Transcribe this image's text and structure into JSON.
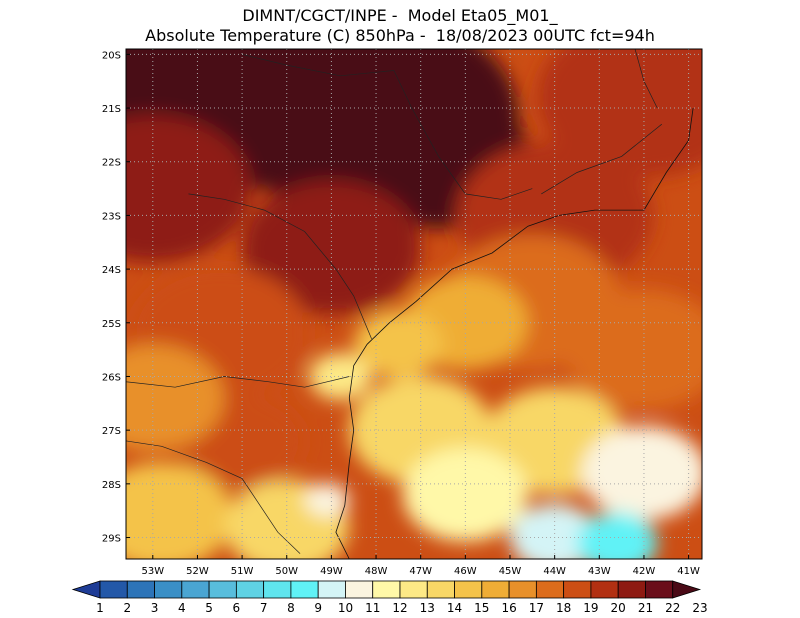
{
  "title": {
    "line1": "DIMNT/CGCT/INPE -  Model Eta05_M01_",
    "line2": "Absolute Temperature (C) 850hPa -  18/08/2023 00UTC fct=94h"
  },
  "map": {
    "lon_range": [
      -53.6,
      -40.7
    ],
    "lat_range": [
      -29.4,
      -19.9
    ],
    "lat_ticks": [
      {
        "value": -20,
        "label": "20S"
      },
      {
        "value": -21,
        "label": "21S"
      },
      {
        "value": -22,
        "label": "22S"
      },
      {
        "value": -23,
        "label": "23S"
      },
      {
        "value": -24,
        "label": "24S"
      },
      {
        "value": -25,
        "label": "25S"
      },
      {
        "value": -26,
        "label": "26S"
      },
      {
        "value": -27,
        "label": "27S"
      },
      {
        "value": -28,
        "label": "28S"
      },
      {
        "value": -29,
        "label": "29S"
      }
    ],
    "lon_ticks": [
      {
        "value": -53,
        "label": "53W"
      },
      {
        "value": -52,
        "label": "52W"
      },
      {
        "value": -51,
        "label": "51W"
      },
      {
        "value": -50,
        "label": "50W"
      },
      {
        "value": -49,
        "label": "49W"
      },
      {
        "value": -48,
        "label": "48W"
      },
      {
        "value": -47,
        "label": "47W"
      },
      {
        "value": -46,
        "label": "46W"
      },
      {
        "value": -45,
        "label": "45W"
      },
      {
        "value": -44,
        "label": "44W"
      },
      {
        "value": -43,
        "label": "43W"
      },
      {
        "value": -42,
        "label": "42W"
      },
      {
        "value": -41,
        "label": "41W"
      }
    ],
    "grid": true
  },
  "colorbar": {
    "labels": [
      "1",
      "2",
      "3",
      "4",
      "5",
      "6",
      "7",
      "8",
      "9",
      "10",
      "11",
      "12",
      "13",
      "14",
      "15",
      "16",
      "17",
      "18",
      "19",
      "20",
      "21",
      "22",
      "23"
    ],
    "colors": [
      "#1e3c96",
      "#2358a8",
      "#2d74b8",
      "#3a8fc6",
      "#4aa5d2",
      "#58bddc",
      "#5fd2e4",
      "#5fe5ee",
      "#60f2f6",
      "#d4f4f6",
      "#fbf4e0",
      "#fff8a8",
      "#fde986",
      "#f8d766",
      "#f4c34a",
      "#efad36",
      "#e8902a",
      "#dc6c1c",
      "#cc4e14",
      "#b23012",
      "#8e1a12",
      "#6a0e1a",
      "#4a0a16"
    ]
  },
  "chart_data": {
    "type": "heatmap",
    "field": "Absolute Temperature (C) 850hPa",
    "levels": [
      1,
      2,
      3,
      4,
      5,
      6,
      7,
      8,
      9,
      10,
      11,
      12,
      13,
      14,
      15,
      16,
      17,
      18,
      19,
      20,
      21,
      22,
      23
    ],
    "x_ticks": [
      "53W",
      "52W",
      "51W",
      "50W",
      "49W",
      "48W",
      "47W",
      "46W",
      "45W",
      "44W",
      "43W",
      "42W",
      "41W"
    ],
    "y_ticks": [
      "20S",
      "21S",
      "22S",
      "23S",
      "24S",
      "25S",
      "26S",
      "27S",
      "28S",
      "29S"
    ],
    "regions": [
      {
        "lon": -52.0,
        "lat": -20.5,
        "value": 23,
        "r": 3.5
      },
      {
        "lon": -48.0,
        "lat": -21.2,
        "value": 23,
        "r": 3.2
      },
      {
        "lon": -46.5,
        "lat": -22.0,
        "value": 23,
        "r": 2.0
      },
      {
        "lon": -53.0,
        "lat": -22.5,
        "value": 21,
        "r": 2.2
      },
      {
        "lon": -49.0,
        "lat": -23.6,
        "value": 21,
        "r": 2.0
      },
      {
        "lon": -42.0,
        "lat": -20.8,
        "value": 20,
        "r": 2.4
      },
      {
        "lon": -44.0,
        "lat": -23.0,
        "value": 20,
        "r": 2.2
      },
      {
        "lon": -51.5,
        "lat": -25.2,
        "value": 19,
        "r": 2.0
      },
      {
        "lon": -51.0,
        "lat": -27.2,
        "value": 19,
        "r": 1.4
      },
      {
        "lon": -53.0,
        "lat": -26.4,
        "value": 17,
        "r": 1.6
      },
      {
        "lon": -44.5,
        "lat": -24.6,
        "value": 18,
        "r": 2.0
      },
      {
        "lon": -42.0,
        "lat": -25.5,
        "value": 18,
        "r": 1.8
      },
      {
        "lon": -46.0,
        "lat": -25.0,
        "value": 16,
        "r": 1.4
      },
      {
        "lon": -47.5,
        "lat": -25.4,
        "value": 15,
        "r": 1.0
      },
      {
        "lon": -52.8,
        "lat": -28.6,
        "value": 15,
        "r": 1.6
      },
      {
        "lon": -50.0,
        "lat": -28.8,
        "value": 14,
        "r": 1.4
      },
      {
        "lon": -47.0,
        "lat": -27.0,
        "value": 14,
        "r": 1.6
      },
      {
        "lon": -44.0,
        "lat": -27.2,
        "value": 14,
        "r": 1.6
      },
      {
        "lon": -46.0,
        "lat": -28.2,
        "value": 12,
        "r": 1.4
      },
      {
        "lon": -42.0,
        "lat": -27.8,
        "value": 11,
        "r": 1.4
      },
      {
        "lon": -49.1,
        "lat": -28.3,
        "value": 11,
        "r": 0.5
      },
      {
        "lon": -44.0,
        "lat": -29.0,
        "value": 10,
        "r": 1.0
      },
      {
        "lon": -42.6,
        "lat": -29.1,
        "value": 9,
        "r": 0.9
      },
      {
        "lon": -48.8,
        "lat": -26.0,
        "value": 13,
        "r": 0.7
      }
    ]
  }
}
